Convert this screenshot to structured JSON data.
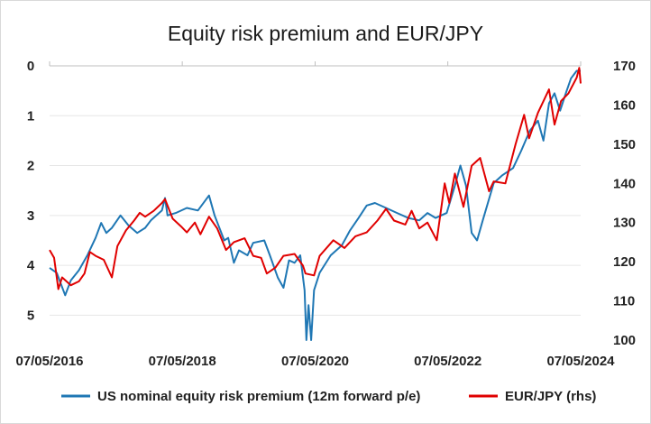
{
  "chart_data": {
    "type": "line",
    "title": "Equity risk premium and EUR/JPY",
    "xlabel": "",
    "ylabel": "",
    "x_ticks": [
      "07/05/2016",
      "07/05/2018",
      "07/05/2020",
      "07/05/2022",
      "07/05/2024"
    ],
    "x_range": [
      "2016-05-07",
      "2024-05-07"
    ],
    "left_axis": {
      "reversed": true,
      "ylim": [
        0,
        5.5
      ],
      "ticks": [
        "0",
        "1",
        "2",
        "3",
        "4",
        "5"
      ]
    },
    "right_axis": {
      "ylim": [
        100,
        170
      ],
      "ticks": [
        "100",
        "110",
        "120",
        "130",
        "140",
        "150",
        "160",
        "170"
      ]
    },
    "grid": true,
    "legend_position": "bottom",
    "series": [
      {
        "name": "US nominal equity risk premium (12m forward p/e)",
        "axis": "left",
        "color": "#1f77b4",
        "points": [
          [
            "2016-05-07",
            4.05
          ],
          [
            "2016-06-15",
            4.15
          ],
          [
            "2016-08-01",
            4.6
          ],
          [
            "2016-09-01",
            4.3
          ],
          [
            "2016-10-15",
            4.1
          ],
          [
            "2016-12-01",
            3.8
          ],
          [
            "2017-01-15",
            3.45
          ],
          [
            "2017-02-15",
            3.15
          ],
          [
            "2017-03-15",
            3.35
          ],
          [
            "2017-04-15",
            3.25
          ],
          [
            "2017-06-01",
            3.0
          ],
          [
            "2017-07-15",
            3.2
          ],
          [
            "2017-09-01",
            3.35
          ],
          [
            "2017-10-15",
            3.25
          ],
          [
            "2017-11-15",
            3.1
          ],
          [
            "2018-01-15",
            2.9
          ],
          [
            "2018-02-01",
            2.65
          ],
          [
            "2018-02-15",
            3.0
          ],
          [
            "2018-04-01",
            2.95
          ],
          [
            "2018-06-01",
            2.85
          ],
          [
            "2018-08-01",
            2.9
          ],
          [
            "2018-10-01",
            2.6
          ],
          [
            "2018-11-01",
            3.0
          ],
          [
            "2018-12-24",
            3.5
          ],
          [
            "2019-01-15",
            3.45
          ],
          [
            "2019-02-15",
            3.95
          ],
          [
            "2019-03-15",
            3.7
          ],
          [
            "2019-05-01",
            3.8
          ],
          [
            "2019-06-01",
            3.55
          ],
          [
            "2019-08-01",
            3.5
          ],
          [
            "2019-09-01",
            3.8
          ],
          [
            "2019-10-15",
            4.25
          ],
          [
            "2019-11-15",
            4.45
          ],
          [
            "2019-12-15",
            3.9
          ],
          [
            "2020-01-15",
            3.95
          ],
          [
            "2020-02-15",
            3.8
          ],
          [
            "2020-03-10",
            4.5
          ],
          [
            "2020-03-20",
            5.5
          ],
          [
            "2020-04-01",
            4.8
          ],
          [
            "2020-04-15",
            5.5
          ],
          [
            "2020-05-01",
            4.5
          ],
          [
            "2020-06-01",
            4.15
          ],
          [
            "2020-08-01",
            3.8
          ],
          [
            "2020-10-01",
            3.6
          ],
          [
            "2020-11-15",
            3.3
          ],
          [
            "2021-01-01",
            3.05
          ],
          [
            "2021-02-15",
            2.8
          ],
          [
            "2021-04-01",
            2.75
          ],
          [
            "2021-06-01",
            2.85
          ],
          [
            "2021-08-01",
            2.95
          ],
          [
            "2021-10-01",
            3.05
          ],
          [
            "2021-12-01",
            3.1
          ],
          [
            "2022-01-15",
            2.95
          ],
          [
            "2022-03-01",
            3.05
          ],
          [
            "2022-05-01",
            2.95
          ],
          [
            "2022-06-15",
            2.4
          ],
          [
            "2022-07-15",
            2.0
          ],
          [
            "2022-08-15",
            2.4
          ],
          [
            "2022-09-15",
            3.35
          ],
          [
            "2022-10-15",
            3.5
          ],
          [
            "2022-11-15",
            3.1
          ],
          [
            "2023-01-15",
            2.35
          ],
          [
            "2023-03-01",
            2.2
          ],
          [
            "2023-05-01",
            2.05
          ],
          [
            "2023-06-15",
            1.7
          ],
          [
            "2023-08-01",
            1.3
          ],
          [
            "2023-09-15",
            1.1
          ],
          [
            "2023-10-15",
            1.5
          ],
          [
            "2023-11-15",
            0.75
          ],
          [
            "2023-12-15",
            0.55
          ],
          [
            "2024-01-15",
            0.9
          ],
          [
            "2024-02-15",
            0.55
          ],
          [
            "2024-03-15",
            0.25
          ],
          [
            "2024-04-15",
            0.1
          ],
          [
            "2024-05-07",
            0.1
          ]
        ]
      },
      {
        "name": "EUR/JPY (rhs)",
        "axis": "right",
        "color": "#e00000",
        "points": [
          [
            "2016-05-07",
            123.0
          ],
          [
            "2016-06-01",
            121.0
          ],
          [
            "2016-06-24",
            113.0
          ],
          [
            "2016-07-15",
            116.0
          ],
          [
            "2016-09-01",
            114.0
          ],
          [
            "2016-10-15",
            115.0
          ],
          [
            "2016-11-15",
            117.0
          ],
          [
            "2016-12-15",
            122.5
          ],
          [
            "2017-01-15",
            121.5
          ],
          [
            "2017-03-01",
            120.5
          ],
          [
            "2017-04-15",
            116.0
          ],
          [
            "2017-05-15",
            124.0
          ],
          [
            "2017-07-01",
            128.0
          ],
          [
            "2017-08-15",
            130.5
          ],
          [
            "2017-09-15",
            132.5
          ],
          [
            "2017-10-15",
            131.5
          ],
          [
            "2017-12-01",
            133.0
          ],
          [
            "2018-01-15",
            135.0
          ],
          [
            "2018-02-01",
            136.0
          ],
          [
            "2018-03-15",
            131.0
          ],
          [
            "2018-05-01",
            129.0
          ],
          [
            "2018-06-01",
            127.5
          ],
          [
            "2018-07-15",
            130.0
          ],
          [
            "2018-08-15",
            127.0
          ],
          [
            "2018-10-01",
            131.5
          ],
          [
            "2018-11-15",
            128.5
          ],
          [
            "2019-01-03",
            123.0
          ],
          [
            "2019-02-15",
            125.0
          ],
          [
            "2019-04-15",
            126.0
          ],
          [
            "2019-06-01",
            121.5
          ],
          [
            "2019-07-15",
            121.0
          ],
          [
            "2019-08-15",
            117.0
          ],
          [
            "2019-10-01",
            118.5
          ],
          [
            "2019-11-15",
            121.5
          ],
          [
            "2020-01-15",
            122.0
          ],
          [
            "2020-03-01",
            119.0
          ],
          [
            "2020-03-15",
            117.0
          ],
          [
            "2020-05-01",
            116.5
          ],
          [
            "2020-06-01",
            121.5
          ],
          [
            "2020-08-15",
            125.5
          ],
          [
            "2020-10-15",
            123.5
          ],
          [
            "2020-12-15",
            126.5
          ],
          [
            "2021-02-15",
            127.5
          ],
          [
            "2021-04-15",
            130.5
          ],
          [
            "2021-06-01",
            133.5
          ],
          [
            "2021-07-15",
            130.5
          ],
          [
            "2021-09-15",
            129.5
          ],
          [
            "2021-10-20",
            133.0
          ],
          [
            "2021-12-01",
            128.5
          ],
          [
            "2022-01-15",
            130.0
          ],
          [
            "2022-03-07",
            125.5
          ],
          [
            "2022-04-20",
            140.0
          ],
          [
            "2022-05-15",
            135.0
          ],
          [
            "2022-06-15",
            142.5
          ],
          [
            "2022-08-01",
            134.0
          ],
          [
            "2022-09-15",
            144.5
          ],
          [
            "2022-11-01",
            146.5
          ],
          [
            "2022-12-20",
            138.0
          ],
          [
            "2023-01-15",
            140.5
          ],
          [
            "2023-03-20",
            140.0
          ],
          [
            "2023-05-15",
            150.0
          ],
          [
            "2023-07-01",
            157.5
          ],
          [
            "2023-07-28",
            151.5
          ],
          [
            "2023-09-15",
            158.0
          ],
          [
            "2023-11-15",
            164.0
          ],
          [
            "2023-12-15",
            155.0
          ],
          [
            "2024-01-20",
            161.0
          ],
          [
            "2024-03-01",
            163.0
          ],
          [
            "2024-04-15",
            167.0
          ],
          [
            "2024-04-29",
            169.5
          ],
          [
            "2024-05-07",
            165.5
          ]
        ]
      }
    ]
  }
}
